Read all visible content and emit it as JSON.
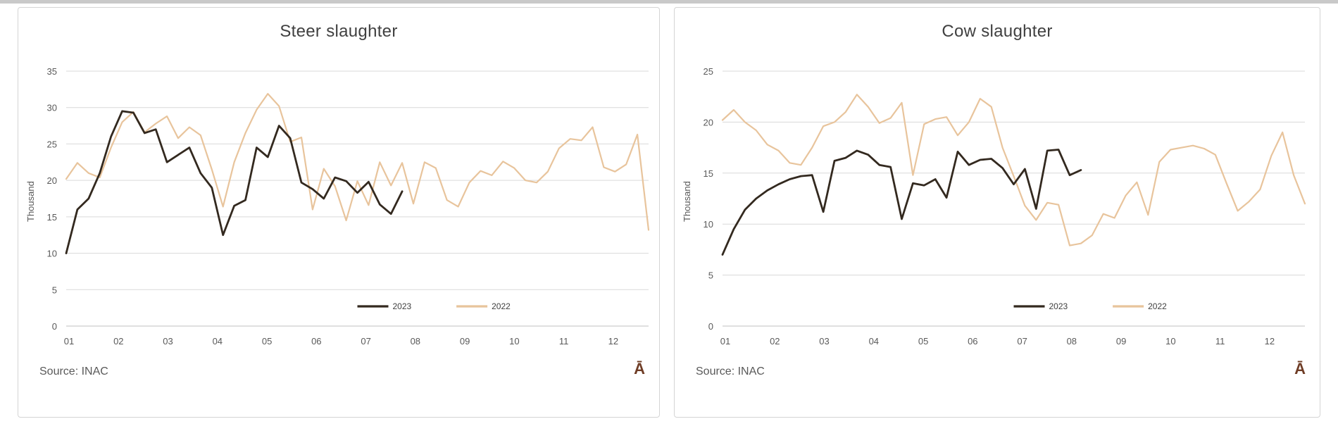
{
  "page": {
    "top_strip_color": "#c9c9c9",
    "background": "#ffffff"
  },
  "chart_data": [
    {
      "type": "line",
      "title": "Steer slaughter",
      "y_axis": {
        "label": "Thousand",
        "max": 35,
        "ticks": [
          0,
          5,
          10,
          15,
          20,
          25,
          30,
          35
        ]
      },
      "x_axis": {
        "labels": [
          "01",
          "02",
          "03",
          "04",
          "05",
          "06",
          "07",
          "08",
          "09",
          "10",
          "11",
          "12"
        ],
        "unit": "month-of-year",
        "points": "weekly"
      },
      "legend": {
        "position": "inside-bottom-right",
        "entries": [
          "2023",
          "2022"
        ]
      },
      "series": [
        {
          "name": "2023",
          "color": "#33291f",
          "line_width": 2.8,
          "values": [
            10.0,
            16.0,
            17.5,
            21.0,
            26.0,
            29.5,
            29.3,
            26.5,
            27.0,
            22.5,
            23.5,
            24.5,
            21.0,
            19.0,
            12.5,
            16.5,
            17.3,
            24.5,
            23.2,
            27.5,
            25.8,
            19.7,
            18.8,
            17.5,
            20.4,
            19.9,
            18.3,
            19.8,
            16.7,
            15.4,
            18.5
          ]
        },
        {
          "name": "2022",
          "color": "#e8c49c",
          "line_width": 2.2,
          "values": [
            20.2,
            22.4,
            21.0,
            20.4,
            24.5,
            28.0,
            29.4,
            26.6,
            27.8,
            28.8,
            25.8,
            27.3,
            26.2,
            21.5,
            16.4,
            22.5,
            26.5,
            29.7,
            31.9,
            30.2,
            25.3,
            25.9,
            16.0,
            21.6,
            19.2,
            14.5,
            19.9,
            16.6,
            22.5,
            19.3,
            22.4,
            16.8,
            22.5,
            21.7,
            17.3,
            16.4,
            19.7,
            21.3,
            20.7,
            22.6,
            21.7,
            20.0,
            19.7,
            21.2,
            24.4,
            25.7,
            25.5,
            27.3,
            21.8,
            21.2,
            22.2,
            26.3,
            13.2
          ]
        }
      ],
      "source": "Source: INAC",
      "logo_glyph": "Ā"
    },
    {
      "type": "line",
      "title": "Cow slaughter",
      "y_axis": {
        "label": "Thousand",
        "max": 25,
        "ticks": [
          0,
          5,
          10,
          15,
          20,
          25
        ]
      },
      "x_axis": {
        "labels": [
          "01",
          "02",
          "03",
          "04",
          "05",
          "06",
          "07",
          "08",
          "09",
          "10",
          "11",
          "12"
        ],
        "unit": "month-of-year",
        "points": "weekly"
      },
      "legend": {
        "position": "inside-bottom-right",
        "entries": [
          "2023",
          "2022"
        ]
      },
      "series": [
        {
          "name": "2023",
          "color": "#33291f",
          "line_width": 2.8,
          "values": [
            7.0,
            9.5,
            11.4,
            12.5,
            13.3,
            13.9,
            14.4,
            14.7,
            14.8,
            11.2,
            16.2,
            16.5,
            17.2,
            16.8,
            15.8,
            15.6,
            10.5,
            14.0,
            13.8,
            14.4,
            12.6,
            17.1,
            15.8,
            16.3,
            16.4,
            15.5,
            13.9,
            15.4,
            11.5,
            17.2,
            17.3,
            14.8,
            15.3
          ]
        },
        {
          "name": "2022",
          "color": "#e8c49c",
          "line_width": 2.2,
          "values": [
            20.2,
            21.2,
            20.0,
            19.2,
            17.8,
            17.2,
            16.0,
            15.8,
            17.5,
            19.6,
            20.0,
            21.0,
            22.7,
            21.5,
            19.9,
            20.4,
            21.9,
            14.8,
            19.8,
            20.3,
            20.5,
            18.7,
            20.0,
            22.3,
            21.5,
            17.5,
            14.7,
            11.8,
            10.4,
            12.1,
            11.9,
            7.9,
            8.1,
            8.9,
            11.0,
            10.6,
            12.8,
            14.1,
            10.9,
            16.1,
            17.3,
            17.5,
            17.7,
            17.4,
            16.8,
            14.0,
            11.3,
            12.2,
            13.4,
            16.7,
            19.0,
            14.8,
            12.0
          ]
        }
      ],
      "source": "Source: INAC",
      "logo_glyph": "Ā"
    }
  ]
}
